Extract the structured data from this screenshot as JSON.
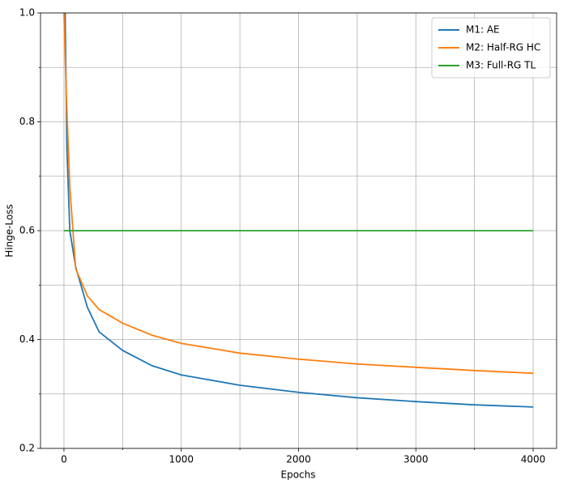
{
  "chart_data": {
    "type": "line",
    "xlabel": "Epochs",
    "ylabel": "Hinge-Loss",
    "xlim": [
      -200,
      4200
    ],
    "ylim": [
      0.2,
      1.0
    ],
    "xticks": [
      0,
      1000,
      2000,
      3000,
      4000
    ],
    "xticks_minor": [
      500,
      1500,
      2500,
      3500
    ],
    "yticks": [
      0.2,
      0.4,
      0.6,
      0.8,
      {
        "value": 1,
        "label": "1.0"
      }
    ],
    "yticks_minor": [
      0.3,
      0.5,
      0.7,
      0.9
    ],
    "grid": true,
    "legend": "upper right",
    "series": [
      {
        "name": "M1: AE",
        "color": "#1f77b4",
        "x": [
          10,
          25,
          50,
          100,
          200,
          300,
          500,
          750,
          1000,
          1500,
          2000,
          2500,
          3000,
          3500,
          4000
        ],
        "values": [
          1.0,
          0.75,
          0.6,
          0.533,
          0.459,
          0.414,
          0.38,
          0.352,
          0.335,
          0.316,
          0.303,
          0.293,
          0.286,
          0.28,
          0.276
        ]
      },
      {
        "name": "M2: Half-RG HC",
        "color": "#ff7f0e",
        "x": [
          0,
          20,
          50,
          100,
          200,
          300,
          500,
          750,
          1000,
          1500,
          2000,
          2500,
          3000,
          3500,
          4000
        ],
        "values": [
          1.0,
          0.85,
          0.68,
          0.53,
          0.48,
          0.455,
          0.43,
          0.408,
          0.393,
          0.375,
          0.364,
          0.355,
          0.349,
          0.343,
          0.338
        ]
      },
      {
        "name": "M3: Full-RG TL",
        "color": "#2ca02c",
        "x": [
          0,
          4000
        ],
        "values": [
          0.6,
          0.6
        ]
      }
    ]
  }
}
